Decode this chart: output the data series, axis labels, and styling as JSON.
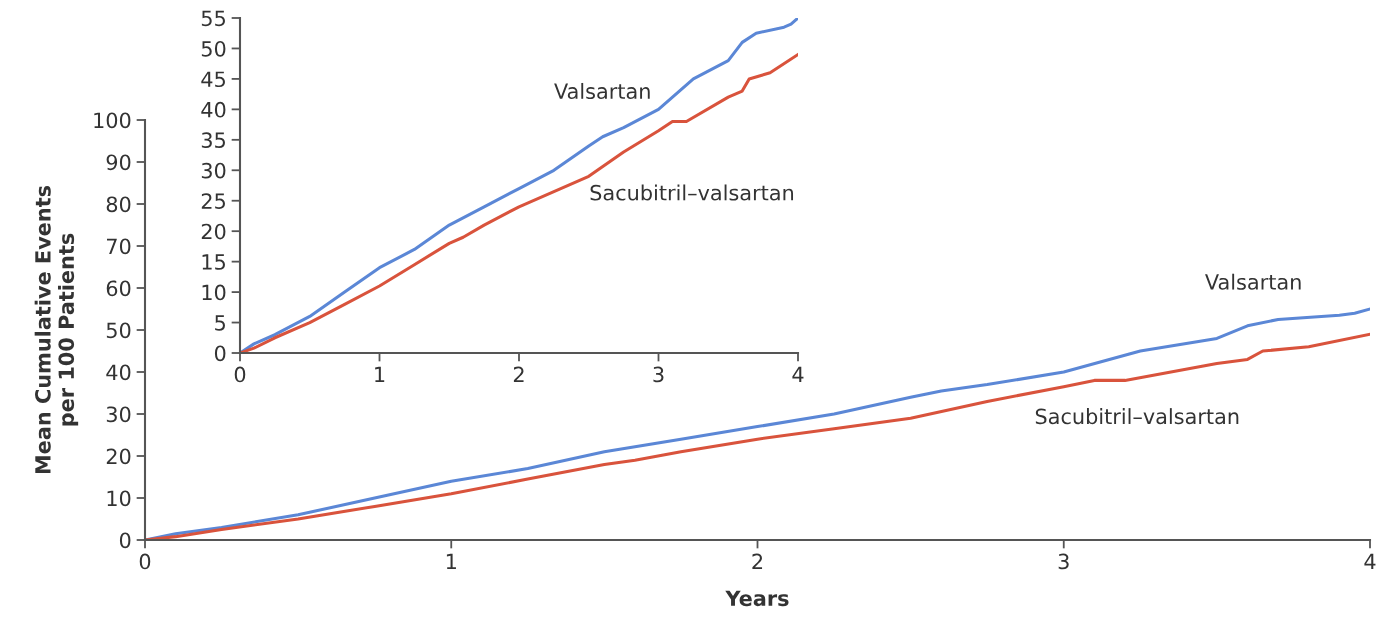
{
  "chart_data": [
    {
      "type": "line",
      "xlabel": "Years",
      "ylabel": "Mean Cumulative Events\nper 100 Patients",
      "xlim": [
        0,
        4
      ],
      "ylim": [
        0,
        100
      ],
      "xticks": [
        0,
        1,
        2,
        3,
        4
      ],
      "yticks": [
        0,
        10,
        20,
        30,
        40,
        50,
        60,
        70,
        80,
        90,
        100
      ],
      "series": [
        {
          "name": "Valsartan",
          "color": "#5b87d6",
          "x": [
            0,
            0.1,
            0.25,
            0.5,
            0.75,
            1,
            1.25,
            1.5,
            1.75,
            2,
            2.25,
            2.5,
            2.6,
            2.75,
            3,
            3.25,
            3.5,
            3.6,
            3.7,
            3.9,
            3.95,
            4
          ],
          "values": [
            0,
            1.5,
            3,
            6,
            10,
            14,
            17,
            21,
            24,
            27,
            30,
            34,
            35.5,
            37,
            40,
            45,
            48,
            51,
            52.5,
            53.5,
            54,
            55
          ]
        },
        {
          "name": "Sacubitril–valsartan",
          "color": "#d9533c",
          "x": [
            0,
            0.1,
            0.25,
            0.5,
            0.75,
            1,
            1.25,
            1.5,
            1.6,
            1.75,
            2,
            2.25,
            2.5,
            2.75,
            3,
            3.1,
            3.2,
            3.5,
            3.6,
            3.65,
            3.8,
            4
          ],
          "values": [
            0,
            0.8,
            2.5,
            5,
            8,
            11,
            14.5,
            18,
            19,
            21,
            24,
            26.5,
            29,
            33,
            36.5,
            38,
            38,
            42,
            43,
            45,
            46,
            49
          ]
        }
      ]
    },
    {
      "type": "line",
      "xlim": [
        0,
        4
      ],
      "ylim": [
        0,
        55
      ],
      "xticks": [
        0,
        1,
        2,
        3,
        4
      ],
      "yticks": [
        0,
        5,
        10,
        15,
        20,
        25,
        30,
        35,
        40,
        45,
        50,
        55
      ],
      "series": [
        {
          "name": "Valsartan",
          "color": "#5b87d6",
          "x": [
            0,
            0.1,
            0.25,
            0.5,
            0.75,
            1,
            1.25,
            1.5,
            1.75,
            2,
            2.25,
            2.5,
            2.6,
            2.75,
            3,
            3.25,
            3.5,
            3.6,
            3.7,
            3.9,
            3.95,
            4
          ],
          "values": [
            0,
            1.5,
            3,
            6,
            10,
            14,
            17,
            21,
            24,
            27,
            30,
            34,
            35.5,
            37,
            40,
            45,
            48,
            51,
            52.5,
            53.5,
            54,
            55
          ]
        },
        {
          "name": "Sacubitril–valsartan",
          "color": "#d9533c",
          "x": [
            0,
            0.1,
            0.25,
            0.5,
            0.75,
            1,
            1.25,
            1.5,
            1.6,
            1.75,
            2,
            2.25,
            2.5,
            2.75,
            3,
            3.1,
            3.2,
            3.5,
            3.6,
            3.65,
            3.8,
            4
          ],
          "values": [
            0,
            0.8,
            2.5,
            5,
            8,
            11,
            14.5,
            18,
            19,
            21,
            24,
            26.5,
            29,
            33,
            36.5,
            38,
            38,
            42,
            43,
            45,
            46,
            49
          ]
        }
      ]
    }
  ]
}
